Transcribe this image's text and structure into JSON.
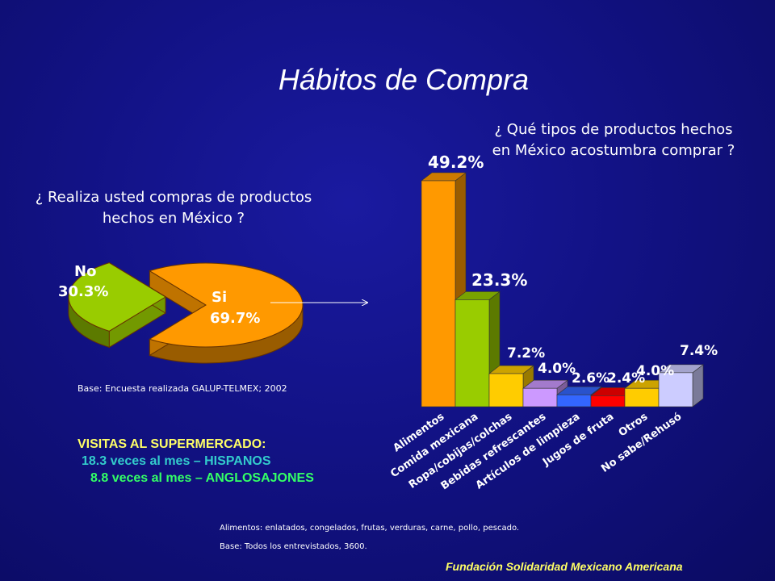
{
  "slide": {
    "title": "Hábitos de Compra",
    "pie_question": "¿ Realiza usted compras de productos hechos en México ?",
    "bar_question": "¿ Qué tipos de productos hechos en México acostumbra comprar ?",
    "pie_base": "Base: Encuesta realizada GALUP-TELMEX; 2002",
    "visits_title": "VISITAS AL SUPERMERCADO:",
    "visits_hispanos": "18.3 veces al mes – HISPANOS",
    "visits_anglo": "8.8 veces al mes – ANGLOSAJONES",
    "note_alimentos": "Alimentos: enlatados, congelados, frutas, verduras, carne, pollo, pescado.",
    "note_base": "Base: Todos los entrevistados, 3600.",
    "foundation": "Fundación Solidaridad Mexicano Americana"
  },
  "chart_data": [
    {
      "type": "pie",
      "slices": [
        {
          "label": "Si",
          "value": 69.7,
          "value_label": "69.7%",
          "color": "#ff9900"
        },
        {
          "label": "No",
          "value": 30.3,
          "value_label": "30.3%",
          "color": "#99cc00"
        }
      ]
    },
    {
      "type": "bar",
      "categories": [
        "Alimentos",
        "Comida mexicana",
        "Ropa/cobijas/colchas",
        "Bebidas refrescantes",
        "Artículos de limpieza",
        "Jugos de fruta",
        "Otros",
        "No sabe/Rehusó"
      ],
      "values": [
        49.2,
        23.3,
        7.2,
        4.0,
        2.6,
        2.4,
        4.0,
        7.4
      ],
      "value_labels": [
        "49.2%",
        "23.3%",
        "7.2%",
        "4.0%",
        "2.6%",
        "2.4%",
        "4.0%",
        "7.4%"
      ],
      "colors": [
        "#ff9900",
        "#99cc00",
        "#ffcc00",
        "#cc99ff",
        "#3366ff",
        "#ff0000",
        "#ffcc00",
        "#ccccff"
      ]
    }
  ]
}
